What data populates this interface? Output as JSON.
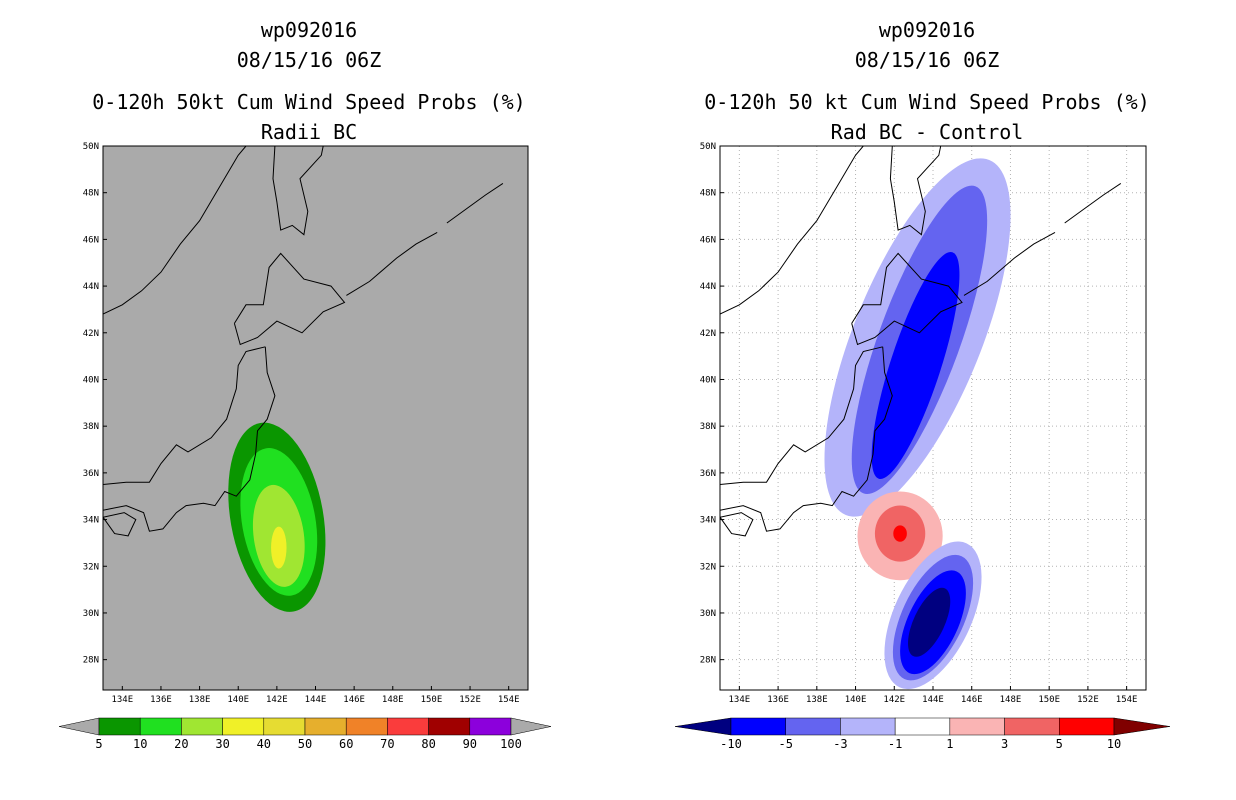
{
  "chart_data": [
    {
      "type": "contour-map",
      "title": [
        "wp092016",
        "08/15/16 06Z",
        "0-120h 50kt Cum Wind Speed Probs (%)",
        "Radii BC"
      ],
      "background_color": "#aaaaaa",
      "x_ticks": [
        "134E",
        "136E",
        "138E",
        "140E",
        "142E",
        "144E",
        "146E",
        "148E",
        "150E",
        "152E",
        "154E"
      ],
      "y_ticks": [
        "50N",
        "48N",
        "46N",
        "44N",
        "42N",
        "40N",
        "38N",
        "36N",
        "34N",
        "32N",
        "30N",
        "28N"
      ],
      "lon_range": [
        133,
        155
      ],
      "lat_range": [
        26.7,
        50
      ],
      "colorbar": {
        "labels": [
          "5",
          "10",
          "20",
          "30",
          "40",
          "50",
          "60",
          "70",
          "80",
          "90",
          "100"
        ],
        "colors": [
          "#0a9600",
          "#20e020",
          "#a0e632",
          "#f0f028",
          "#e6dc32",
          "#e6af2d",
          "#f08228",
          "#fa3c3c",
          "#a00000",
          "#8c00dc"
        ]
      },
      "contours": [
        {
          "level": "5",
          "color": "#0a9600",
          "center": [
            142.0,
            34.1
          ],
          "semi_axes": [
            2.4,
            4.1
          ],
          "tilt": -10
        },
        {
          "level": "10",
          "color": "#20e020",
          "center": [
            142.1,
            33.9
          ],
          "semi_axes": [
            1.9,
            3.2
          ],
          "tilt": -10
        },
        {
          "level": "20",
          "color": "#a0e632",
          "center": [
            142.1,
            33.3
          ],
          "semi_axes": [
            1.3,
            2.2
          ],
          "tilt": -8
        },
        {
          "level": "30",
          "color": "#f0f028",
          "center": [
            142.1,
            32.8
          ],
          "semi_axes": [
            0.4,
            0.9
          ],
          "tilt": 0
        }
      ]
    },
    {
      "type": "contour-map",
      "title": [
        "wp092016",
        "08/15/16 06Z",
        "0-120h 50 kt Cum Wind Speed Probs (%)",
        "Rad BC - Control"
      ],
      "background_color": "#ffffff",
      "grid": true,
      "x_ticks": [
        "134E",
        "136E",
        "138E",
        "140E",
        "142E",
        "144E",
        "146E",
        "148E",
        "150E",
        "152E",
        "154E"
      ],
      "y_ticks": [
        "50N",
        "48N",
        "46N",
        "44N",
        "42N",
        "40N",
        "38N",
        "36N",
        "34N",
        "32N",
        "30N",
        "28N"
      ],
      "lon_range": [
        133,
        155
      ],
      "lat_range": [
        26.7,
        50
      ],
      "colorbar": {
        "labels": [
          "-10",
          "-5",
          "-3",
          "-1",
          "1",
          "3",
          "5",
          "10"
        ],
        "colors": [
          "#000080",
          "#0000ff",
          "#6464f0",
          "#b4b4fa",
          "#ffffff",
          "#fab4b4",
          "#f06464",
          "#ff0000",
          "#800000"
        ]
      },
      "contours": [
        {
          "level": "-1",
          "color": "#b4b4fa",
          "center": [
            143.2,
            41.8
          ],
          "semi_axes": [
            3.3,
            8.2
          ],
          "tilt": 22
        },
        {
          "level": "-3",
          "color": "#6464f0",
          "center": [
            143.3,
            41.7
          ],
          "semi_axes": [
            2.1,
            7.0
          ],
          "tilt": 20
        },
        {
          "level": "-5",
          "color": "#0000ff",
          "center": [
            143.1,
            40.6
          ],
          "semi_axes": [
            1.3,
            5.1
          ],
          "tilt": 18
        },
        {
          "level": "1",
          "color": "#fab4b4",
          "center": [
            142.3,
            33.3
          ],
          "semi_axes": [
            2.2,
            1.9
          ],
          "tilt": 0
        },
        {
          "level": "3",
          "color": "#f06464",
          "center": [
            142.3,
            33.4
          ],
          "semi_axes": [
            1.3,
            1.2
          ],
          "tilt": 0
        },
        {
          "level": "5",
          "color": "#ff0000",
          "center": [
            142.3,
            33.4
          ],
          "semi_axes": [
            0.35,
            0.35
          ],
          "tilt": 0
        },
        {
          "level": "-1",
          "color": "#b4b4fa",
          "center": [
            144.0,
            29.9
          ],
          "semi_axes": [
            2.0,
            3.4
          ],
          "tilt": 25
        },
        {
          "level": "-3",
          "color": "#6464f0",
          "center": [
            144.0,
            29.8
          ],
          "semi_axes": [
            1.6,
            2.9
          ],
          "tilt": 25
        },
        {
          "level": "-5",
          "color": "#0000ff",
          "center": [
            144.0,
            29.6
          ],
          "semi_axes": [
            1.3,
            2.4
          ],
          "tilt": 25
        },
        {
          "level": "-10",
          "color": "#000080",
          "center": [
            143.8,
            29.6
          ],
          "semi_axes": [
            0.8,
            1.6
          ],
          "tilt": 25
        }
      ]
    }
  ]
}
